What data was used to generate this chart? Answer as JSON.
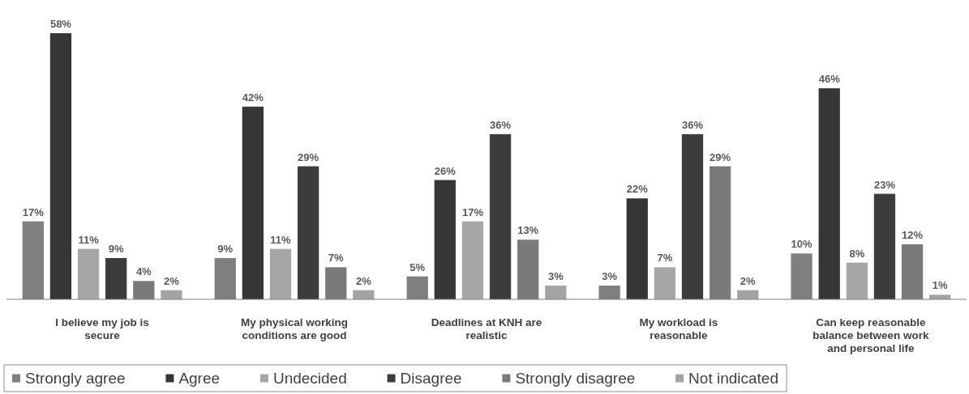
{
  "chart_data": {
    "type": "bar",
    "categories": [
      "I believe my job is secure",
      "My physical working conditions are good",
      "Deadlines at KNH are realistic",
      "My workload is reasonable",
      "Can keep reasonable balance between work and personal life"
    ],
    "series": [
      {
        "name": "Strongly agree",
        "color": "#7f7f7f",
        "values": [
          17,
          9,
          5,
          3,
          10
        ],
        "value_labels": [
          "17%",
          "9%",
          "5%",
          "3%",
          "10%"
        ]
      },
      {
        "name": "Agree",
        "color": "#363636",
        "values": [
          58,
          42,
          26,
          22,
          46
        ],
        "value_labels": [
          "58%",
          "42%",
          "26%",
          "22%",
          "46%"
        ]
      },
      {
        "name": "Undecided",
        "color": "#a6a6a6",
        "values": [
          11,
          11,
          17,
          7,
          8
        ],
        "value_labels": [
          "11%",
          "11%",
          "17%",
          "7%",
          "8%"
        ]
      },
      {
        "name": "Disagree",
        "color": "#3c3c3c",
        "values": [
          9,
          29,
          36,
          36,
          23
        ],
        "value_labels": [
          "9%",
          "29%",
          "36%",
          "36%",
          "23%"
        ]
      },
      {
        "name": "Strongly disagree",
        "color": "#7a7a7a",
        "values": [
          4,
          7,
          13,
          29,
          12
        ],
        "value_labels": [
          "4%",
          "7%",
          "13%",
          "29%",
          "12%"
        ]
      },
      {
        "name": "Not indicated",
        "color": "#a3a3a3",
        "values": [
          2,
          2,
          3,
          2,
          1
        ],
        "value_labels": [
          "2%",
          "2%",
          "3%",
          "2%",
          "1%"
        ]
      }
    ],
    "legend": "bottom"
  }
}
